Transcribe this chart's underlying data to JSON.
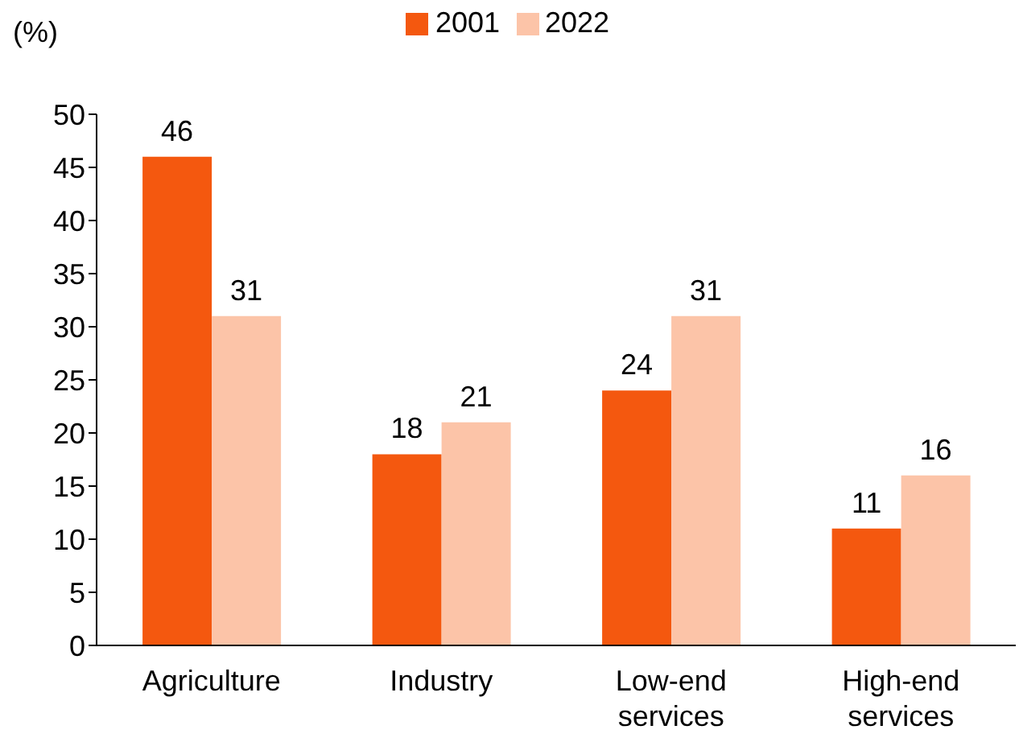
{
  "chart_data": {
    "type": "bar",
    "ylabel": "(%)",
    "categories": [
      "Agriculture",
      "Industry",
      "Low-end services",
      "High-end services"
    ],
    "series": [
      {
        "name": "2001",
        "color": "#f4580f",
        "values": [
          46,
          18,
          24,
          11
        ]
      },
      {
        "name": "2022",
        "color": "#fcc4a8",
        "values": [
          31,
          21,
          31,
          16
        ]
      }
    ],
    "ylim": [
      0,
      50
    ],
    "yticks": [
      0,
      5,
      10,
      15,
      20,
      25,
      30,
      35,
      40,
      45,
      50
    ],
    "grid": false,
    "legend": "top",
    "data_labels": true
  }
}
